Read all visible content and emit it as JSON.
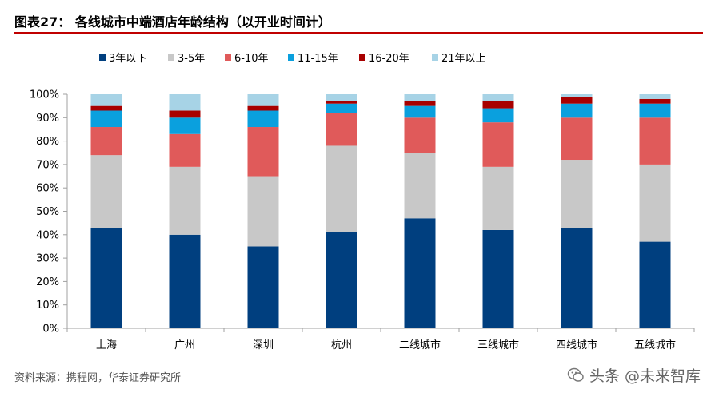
{
  "figure_title": "图表27：  各线城市中端酒店年龄结构（以开业时间计）",
  "source_note": "资料来源：携程网，华泰证券研究所",
  "watermark_text": "头条 @未来智库",
  "chart_data": {
    "type": "bar",
    "stacked": true,
    "percent": true,
    "categories": [
      "上海",
      "广州",
      "深圳",
      "杭州",
      "二线城市",
      "三线城市",
      "四线城市",
      "五线城市"
    ],
    "series": [
      {
        "name": "3年以下",
        "color": "#003f7f",
        "values": [
          43,
          40,
          35,
          41,
          47,
          42,
          43,
          37
        ]
      },
      {
        "name": "3-5年",
        "color": "#c8c8c8",
        "values": [
          31,
          29,
          30,
          37,
          28,
          27,
          29,
          33
        ]
      },
      {
        "name": "6-10年",
        "color": "#e05a5a",
        "values": [
          12,
          14,
          21,
          14,
          15,
          19,
          18,
          20
        ]
      },
      {
        "name": "11-15年",
        "color": "#0aa0de",
        "values": [
          7,
          7,
          7,
          4,
          5,
          6,
          6,
          6
        ]
      },
      {
        "name": "16-20年",
        "color": "#a80000",
        "values": [
          2,
          3,
          2,
          1,
          2,
          3,
          3,
          2
        ]
      },
      {
        "name": "21年以上",
        "color": "#a7d3e6",
        "values": [
          5,
          7,
          5,
          3,
          3,
          3,
          1,
          2
        ]
      }
    ],
    "yticks": [
      "0%",
      "10%",
      "20%",
      "30%",
      "40%",
      "50%",
      "60%",
      "70%",
      "80%",
      "90%",
      "100%"
    ],
    "ylim": [
      0,
      100
    ],
    "legend_position": "top-left",
    "grid": false
  }
}
